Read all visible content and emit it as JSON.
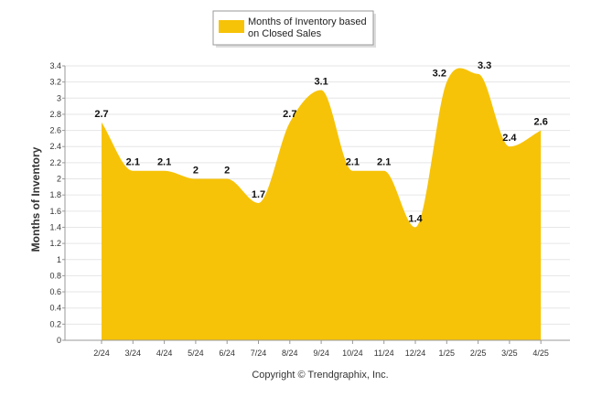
{
  "chart_data": {
    "type": "area",
    "categories": [
      "2/24",
      "3/24",
      "4/24",
      "5/24",
      "6/24",
      "7/24",
      "8/24",
      "9/24",
      "10/24",
      "11/24",
      "12/24",
      "1/25",
      "2/25",
      "3/25",
      "4/25"
    ],
    "series": [
      {
        "name": "Months of Inventory based on Closed Sales",
        "values": [
          2.7,
          2.1,
          2.1,
          2,
          2,
          1.7,
          2.7,
          3.1,
          2.1,
          2.1,
          1.4,
          3.2,
          3.3,
          2.4,
          2.6
        ],
        "labels": [
          "2.7",
          "2.1",
          "2.1",
          "2",
          "2",
          "1.7",
          "2.7",
          "3.1",
          "2.1",
          "2.1",
          "1.4",
          "3.2",
          "3.3",
          "2.4",
          "2.6"
        ],
        "color": "#F7C308"
      }
    ],
    "legend_lines": [
      "Months of Inventory based",
      "on Closed Sales"
    ],
    "ylabel": "Months of Inventory",
    "ylim": [
      0,
      3.4
    ],
    "yticks": [
      "0",
      "0.2",
      "0.4",
      "0.6",
      "0.8",
      "1",
      "1.2",
      "1.4",
      "1.6",
      "1.8",
      "2",
      "2.2",
      "2.4",
      "2.6",
      "2.8",
      "3",
      "3.2",
      "3.4"
    ],
    "grid": true,
    "legend_position": "top-center",
    "credit": "Copyright © Trendgraphix, Inc."
  }
}
